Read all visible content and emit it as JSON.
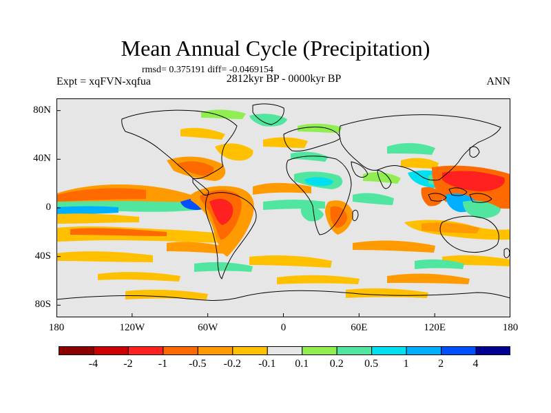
{
  "title": "Mean Annual Cycle (Precipitation)",
  "stats": "rmsd= 0.375191 diff= -0.0469154",
  "period": "2812kyr BP - 0000kyr BP",
  "experiment": "Expt = xqFVN-xqfua",
  "season": "ANN",
  "map": {
    "background_color": "#e6e6e6",
    "lat_labels": [
      {
        "text": "80N",
        "lat": 80
      },
      {
        "text": "40N",
        "lat": 40
      },
      {
        "text": "0",
        "lat": 0
      },
      {
        "text": "40S",
        "lat": -40
      },
      {
        "text": "80S",
        "lat": -80
      }
    ],
    "lon_labels": [
      {
        "text": "180",
        "lon": -180
      },
      {
        "text": "120W",
        "lon": -120
      },
      {
        "text": "60W",
        "lon": -60
      },
      {
        "text": "0",
        "lon": 0
      },
      {
        "text": "60E",
        "lon": 60
      },
      {
        "text": "120E",
        "lon": 120
      },
      {
        "text": "180",
        "lon": 180
      }
    ]
  },
  "colorbar": {
    "colors": [
      "#8b0000",
      "#cc0000",
      "#ff2020",
      "#ff6a00",
      "#ff9a00",
      "#ffc000",
      "#e6e6e6",
      "#90ee50",
      "#50e6a0",
      "#00e0f0",
      "#00b0ff",
      "#0050ff",
      "#000090"
    ],
    "labels": [
      "-4",
      "-2",
      "-1",
      "-0.5",
      "-0.2",
      "-0.1",
      "0.1",
      "0.2",
      "0.5",
      "1",
      "2",
      "4"
    ]
  }
}
